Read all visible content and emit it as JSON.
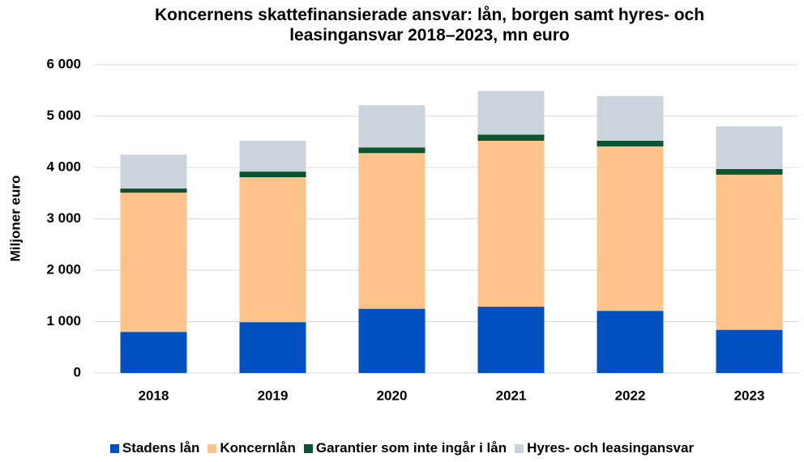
{
  "chart_data": {
    "type": "stacked_bar",
    "title": "Koncernens skattefinansierade ansvar: lån, borgen samt hyres- och leasingansvar 2018–2023, mn euro",
    "y_label": "Miljoner euro",
    "categories": [
      "2018",
      "2019",
      "2020",
      "2021",
      "2022",
      "2023"
    ],
    "series": [
      {
        "name": "Stadens lån",
        "color": "#0050c0",
        "values": [
          800,
          990,
          1250,
          1290,
          1210,
          840
        ]
      },
      {
        "name": "Koncernlån",
        "color": "#fdc38a",
        "values": [
          2710,
          2820,
          3030,
          3230,
          3200,
          3020
        ]
      },
      {
        "name": "Garantier som inte ingår i lån",
        "color": "#0b5331",
        "values": [
          80,
          110,
          110,
          120,
          110,
          110
        ]
      },
      {
        "name": "Hyres- och leasingansvar",
        "color": "#cbd4dd",
        "values": [
          660,
          600,
          820,
          850,
          870,
          830
        ]
      }
    ],
    "ylim": [
      0,
      6000
    ],
    "yticks": [
      0,
      {
        "value": 1000,
        "label": "1 000"
      },
      {
        "value": 2000,
        "label": "2 000"
      },
      {
        "value": 3000,
        "label": "3 000"
      },
      {
        "value": 4000,
        "label": "4 000"
      },
      {
        "value": 5000,
        "label": "5 000"
      },
      {
        "value": 6000,
        "label": "6 000"
      }
    ],
    "grid": true
  }
}
